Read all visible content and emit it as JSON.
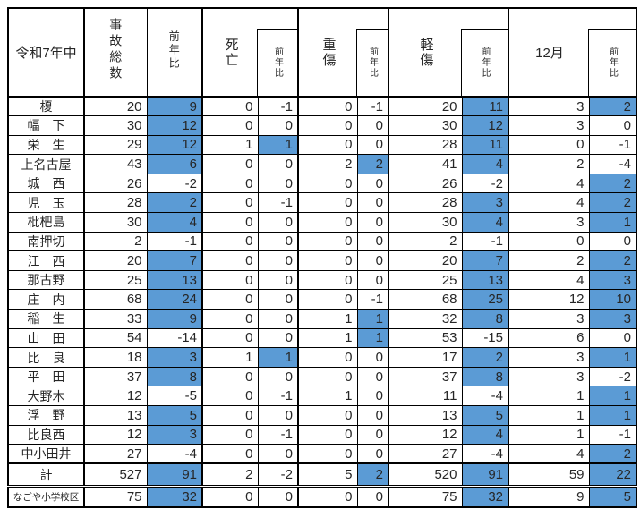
{
  "table": {
    "title_cell": "令和7年中",
    "accent_color": "#5b9bd5",
    "columns": {
      "total": "事故総数",
      "yoy": "前年比",
      "death": "死亡",
      "serious": "重傷",
      "light": "軽傷",
      "december": "12月"
    },
    "yoy_column_indices": [
      1,
      3,
      5,
      7,
      9
    ],
    "rows": [
      {
        "label": "榎",
        "values": [
          20,
          9,
          0,
          -1,
          0,
          -1,
          20,
          11,
          3,
          2
        ]
      },
      {
        "label": "幅　下",
        "values": [
          30,
          12,
          0,
          0,
          0,
          0,
          30,
          12,
          3,
          0
        ]
      },
      {
        "label": "栄　生",
        "values": [
          29,
          12,
          1,
          1,
          0,
          0,
          28,
          11,
          0,
          -1
        ]
      },
      {
        "label": "上名古屋",
        "values": [
          43,
          6,
          0,
          0,
          2,
          2,
          41,
          4,
          2,
          -4
        ]
      },
      {
        "label": "城　西",
        "values": [
          26,
          -2,
          0,
          0,
          0,
          0,
          26,
          -2,
          4,
          2
        ]
      },
      {
        "label": "児　玉",
        "values": [
          28,
          2,
          0,
          -1,
          0,
          0,
          28,
          3,
          4,
          2
        ]
      },
      {
        "label": "枇杷島",
        "values": [
          30,
          4,
          0,
          0,
          0,
          0,
          30,
          4,
          3,
          1
        ]
      },
      {
        "label": "南押切",
        "values": [
          2,
          -1,
          0,
          0,
          0,
          0,
          2,
          -1,
          0,
          0
        ]
      },
      {
        "label": "江　西",
        "values": [
          20,
          7,
          0,
          0,
          0,
          0,
          20,
          7,
          2,
          2
        ]
      },
      {
        "label": "那古野",
        "values": [
          25,
          13,
          0,
          0,
          0,
          0,
          25,
          13,
          4,
          3
        ]
      },
      {
        "label": "庄　内",
        "values": [
          68,
          24,
          0,
          0,
          0,
          -1,
          68,
          25,
          12,
          10
        ]
      },
      {
        "label": "稲　生",
        "values": [
          33,
          9,
          0,
          0,
          1,
          1,
          32,
          8,
          3,
          3
        ]
      },
      {
        "label": "山　田",
        "values": [
          54,
          -14,
          0,
          0,
          1,
          1,
          53,
          -15,
          6,
          0
        ]
      },
      {
        "label": "比　良",
        "values": [
          18,
          3,
          1,
          1,
          0,
          0,
          17,
          2,
          3,
          1
        ]
      },
      {
        "label": "平　田",
        "values": [
          37,
          8,
          0,
          0,
          0,
          0,
          37,
          8,
          3,
          -2
        ]
      },
      {
        "label": "大野木",
        "values": [
          12,
          -5,
          0,
          -1,
          1,
          0,
          11,
          -4,
          1,
          1
        ]
      },
      {
        "label": "浮　野",
        "values": [
          13,
          5,
          0,
          0,
          0,
          0,
          13,
          5,
          1,
          1
        ]
      },
      {
        "label": "比良西",
        "values": [
          12,
          3,
          0,
          -1,
          0,
          0,
          12,
          4,
          1,
          -1
        ]
      },
      {
        "label": "中小田井",
        "values": [
          27,
          -4,
          0,
          0,
          0,
          0,
          27,
          -4,
          4,
          2
        ]
      }
    ],
    "total_row": {
      "label": "計",
      "values": [
        527,
        91,
        2,
        -2,
        5,
        2,
        520,
        91,
        59,
        22
      ]
    },
    "footer_row": {
      "label": "なごや小学校区",
      "values": [
        75,
        32,
        0,
        0,
        0,
        0,
        75,
        32,
        9,
        5
      ]
    }
  }
}
